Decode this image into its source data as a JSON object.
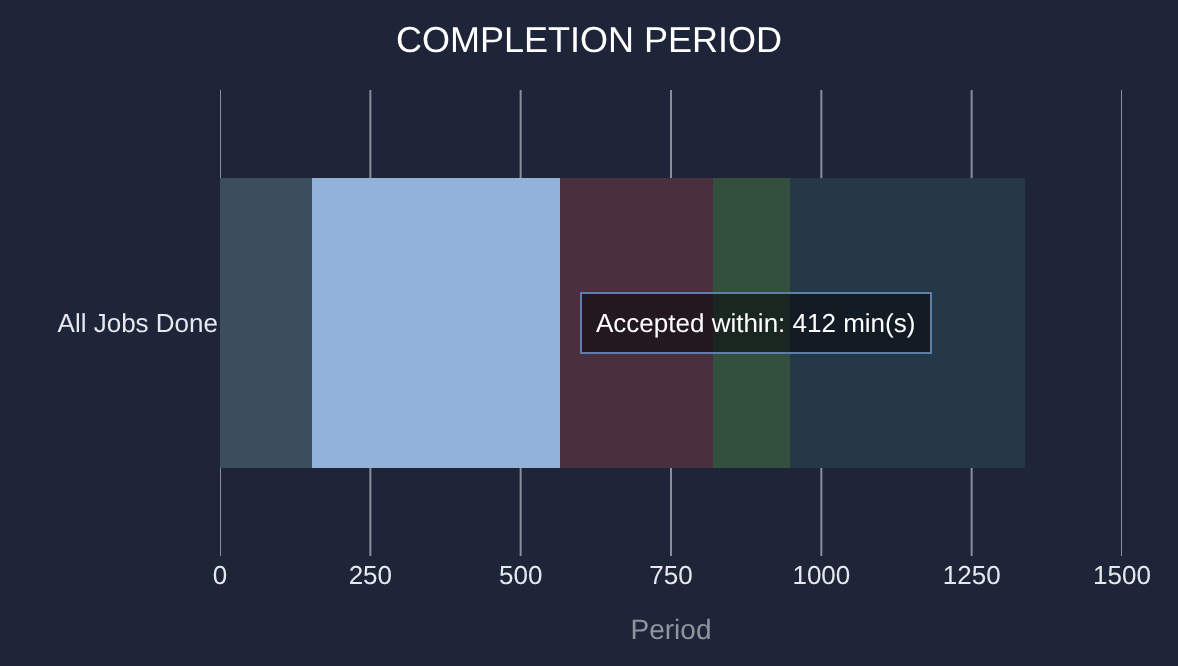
{
  "chart_data": {
    "type": "bar",
    "title": "COMPLETION PERIOD",
    "xlabel": "Period",
    "orientation": "horizontal",
    "stacked": true,
    "categories": [
      "All Jobs Done"
    ],
    "series": [
      {
        "color": "#3a4e5c",
        "values": [
          155
        ]
      },
      {
        "color": "#92b2da",
        "values": [
          412
        ]
      },
      {
        "color": "#4a2f3f",
        "values": [
          255
        ]
      },
      {
        "color": "#33503f",
        "values": [
          128
        ]
      },
      {
        "color": "#243848",
        "values": [
          387
        ]
      }
    ],
    "xlim": [
      0,
      1500
    ],
    "xticks": [
      0,
      250,
      500,
      750,
      1000,
      1250,
      1500
    ],
    "grid": "x",
    "legend": false,
    "annotations": [
      {
        "text": "Accepted within: 412 min(s)",
        "x": 567
      }
    ]
  }
}
